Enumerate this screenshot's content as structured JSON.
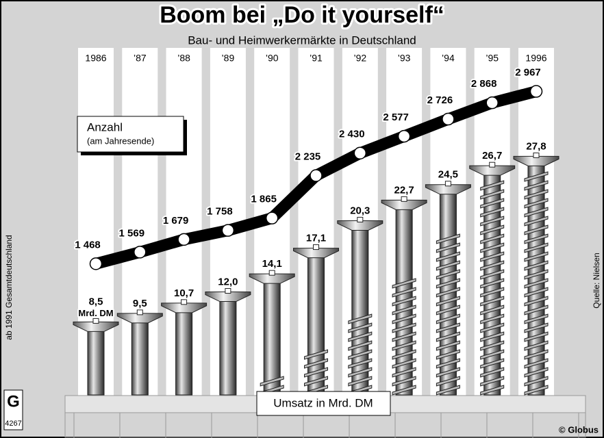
{
  "chart_data": {
    "type": "combo",
    "title": "Boom bei „Do it yourself“",
    "subtitle": "Bau- und Heimwerkermärkte in Deutschland",
    "categories": [
      "1986",
      "’87",
      "’88",
      "’89",
      "’90",
      "’91",
      "’92",
      "’93",
      "’94",
      "’95",
      "1996"
    ],
    "series": [
      {
        "name": "Umsatz in Mrd. DM",
        "type": "bar",
        "color": "#8c8c8c",
        "unit": "Mrd. DM",
        "values": [
          8.5,
          9.5,
          10.7,
          12.0,
          14.1,
          17.1,
          20.3,
          22.7,
          24.5,
          26.7,
          27.8
        ],
        "value_labels": [
          "8,5",
          "9,5",
          "10,7",
          "12,0",
          "14,1",
          "17,1",
          "20,3",
          "22,7",
          "24,5",
          "26,7",
          "27,8"
        ]
      },
      {
        "name": "Anzahl",
        "note": "(am Jahresende)",
        "type": "line",
        "color": "#000000",
        "values": [
          1468,
          1569,
          1679,
          1758,
          1865,
          2235,
          2430,
          2577,
          2726,
          2868,
          2967
        ],
        "value_labels": [
          "1 468",
          "1 569",
          "1 679",
          "1 758",
          "1 865",
          "2 235",
          "2 430",
          "2 577",
          "2 726",
          "2 868",
          "2 967"
        ]
      }
    ],
    "footnote": "ab 1991 Gesamtdeutschland",
    "source": "Quelle: Nielsen",
    "credit": "© Globus",
    "logo": "G",
    "number": "4267"
  }
}
